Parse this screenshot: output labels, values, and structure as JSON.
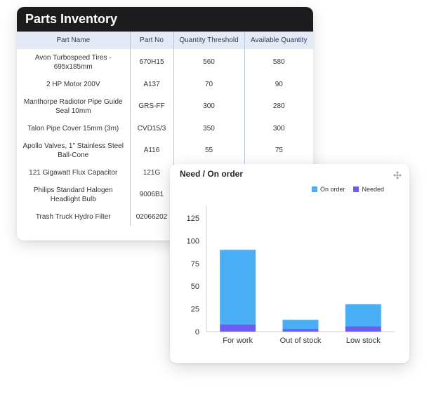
{
  "inventory": {
    "title": "Parts Inventory",
    "columns": [
      "Part Name",
      "Part No",
      "Quantity Threshold",
      "Available Quantity"
    ],
    "rows": [
      {
        "name": "Avon Turbospeed Tires - 695x185mm",
        "part_no": "670H15",
        "threshold": "560",
        "available": "580"
      },
      {
        "name": "2 HP Motor 200V",
        "part_no": "A137",
        "threshold": "70",
        "available": "90"
      },
      {
        "name": "Manthorpe Radiotor Pipe Guide Seal 10mm",
        "part_no": "GRS-FF",
        "threshold": "300",
        "available": "280"
      },
      {
        "name": "Talon Pipe Cover 15mm (3m)",
        "part_no": "CVD15/3",
        "threshold": "350",
        "available": "300"
      },
      {
        "name": "Apollo Valves, 1\" Stainless Steel Ball-Cone",
        "part_no": "A116",
        "threshold": "55",
        "available": "75"
      },
      {
        "name": "121 Gigawatt Flux Capacitor",
        "part_no": "121G",
        "threshold": "",
        "available": ""
      },
      {
        "name": "Philips Standard Halogen Headlight Bulb",
        "part_no": "9006B1",
        "threshold": "",
        "available": ""
      },
      {
        "name": "Trash Truck Hydro Filter",
        "part_no": "02066202",
        "threshold": "",
        "available": ""
      }
    ]
  },
  "chart_panel": {
    "title": "Need / On order",
    "move_icon": "move-arrows-icon"
  },
  "colors": {
    "on_order": "#4aaef5",
    "needed": "#6c5cf0",
    "header_bg": "#1c1c1e",
    "table_header_bg": "#e4e9f6"
  },
  "chart_data": {
    "type": "bar",
    "stacked": true,
    "title": "Need / On order",
    "categories": [
      "For work",
      "Out of stock",
      "Low stock"
    ],
    "series": [
      {
        "name": "Needed",
        "values": [
          8,
          3,
          6
        ]
      },
      {
        "name": "On order",
        "values": [
          82,
          10,
          24
        ]
      }
    ],
    "legend": [
      "On order",
      "Needed"
    ],
    "legend_position": "top-right",
    "yticks": [
      "0",
      "25",
      "50",
      "75",
      "100",
      "125"
    ],
    "ylim": [
      0,
      125
    ],
    "grid": false
  }
}
